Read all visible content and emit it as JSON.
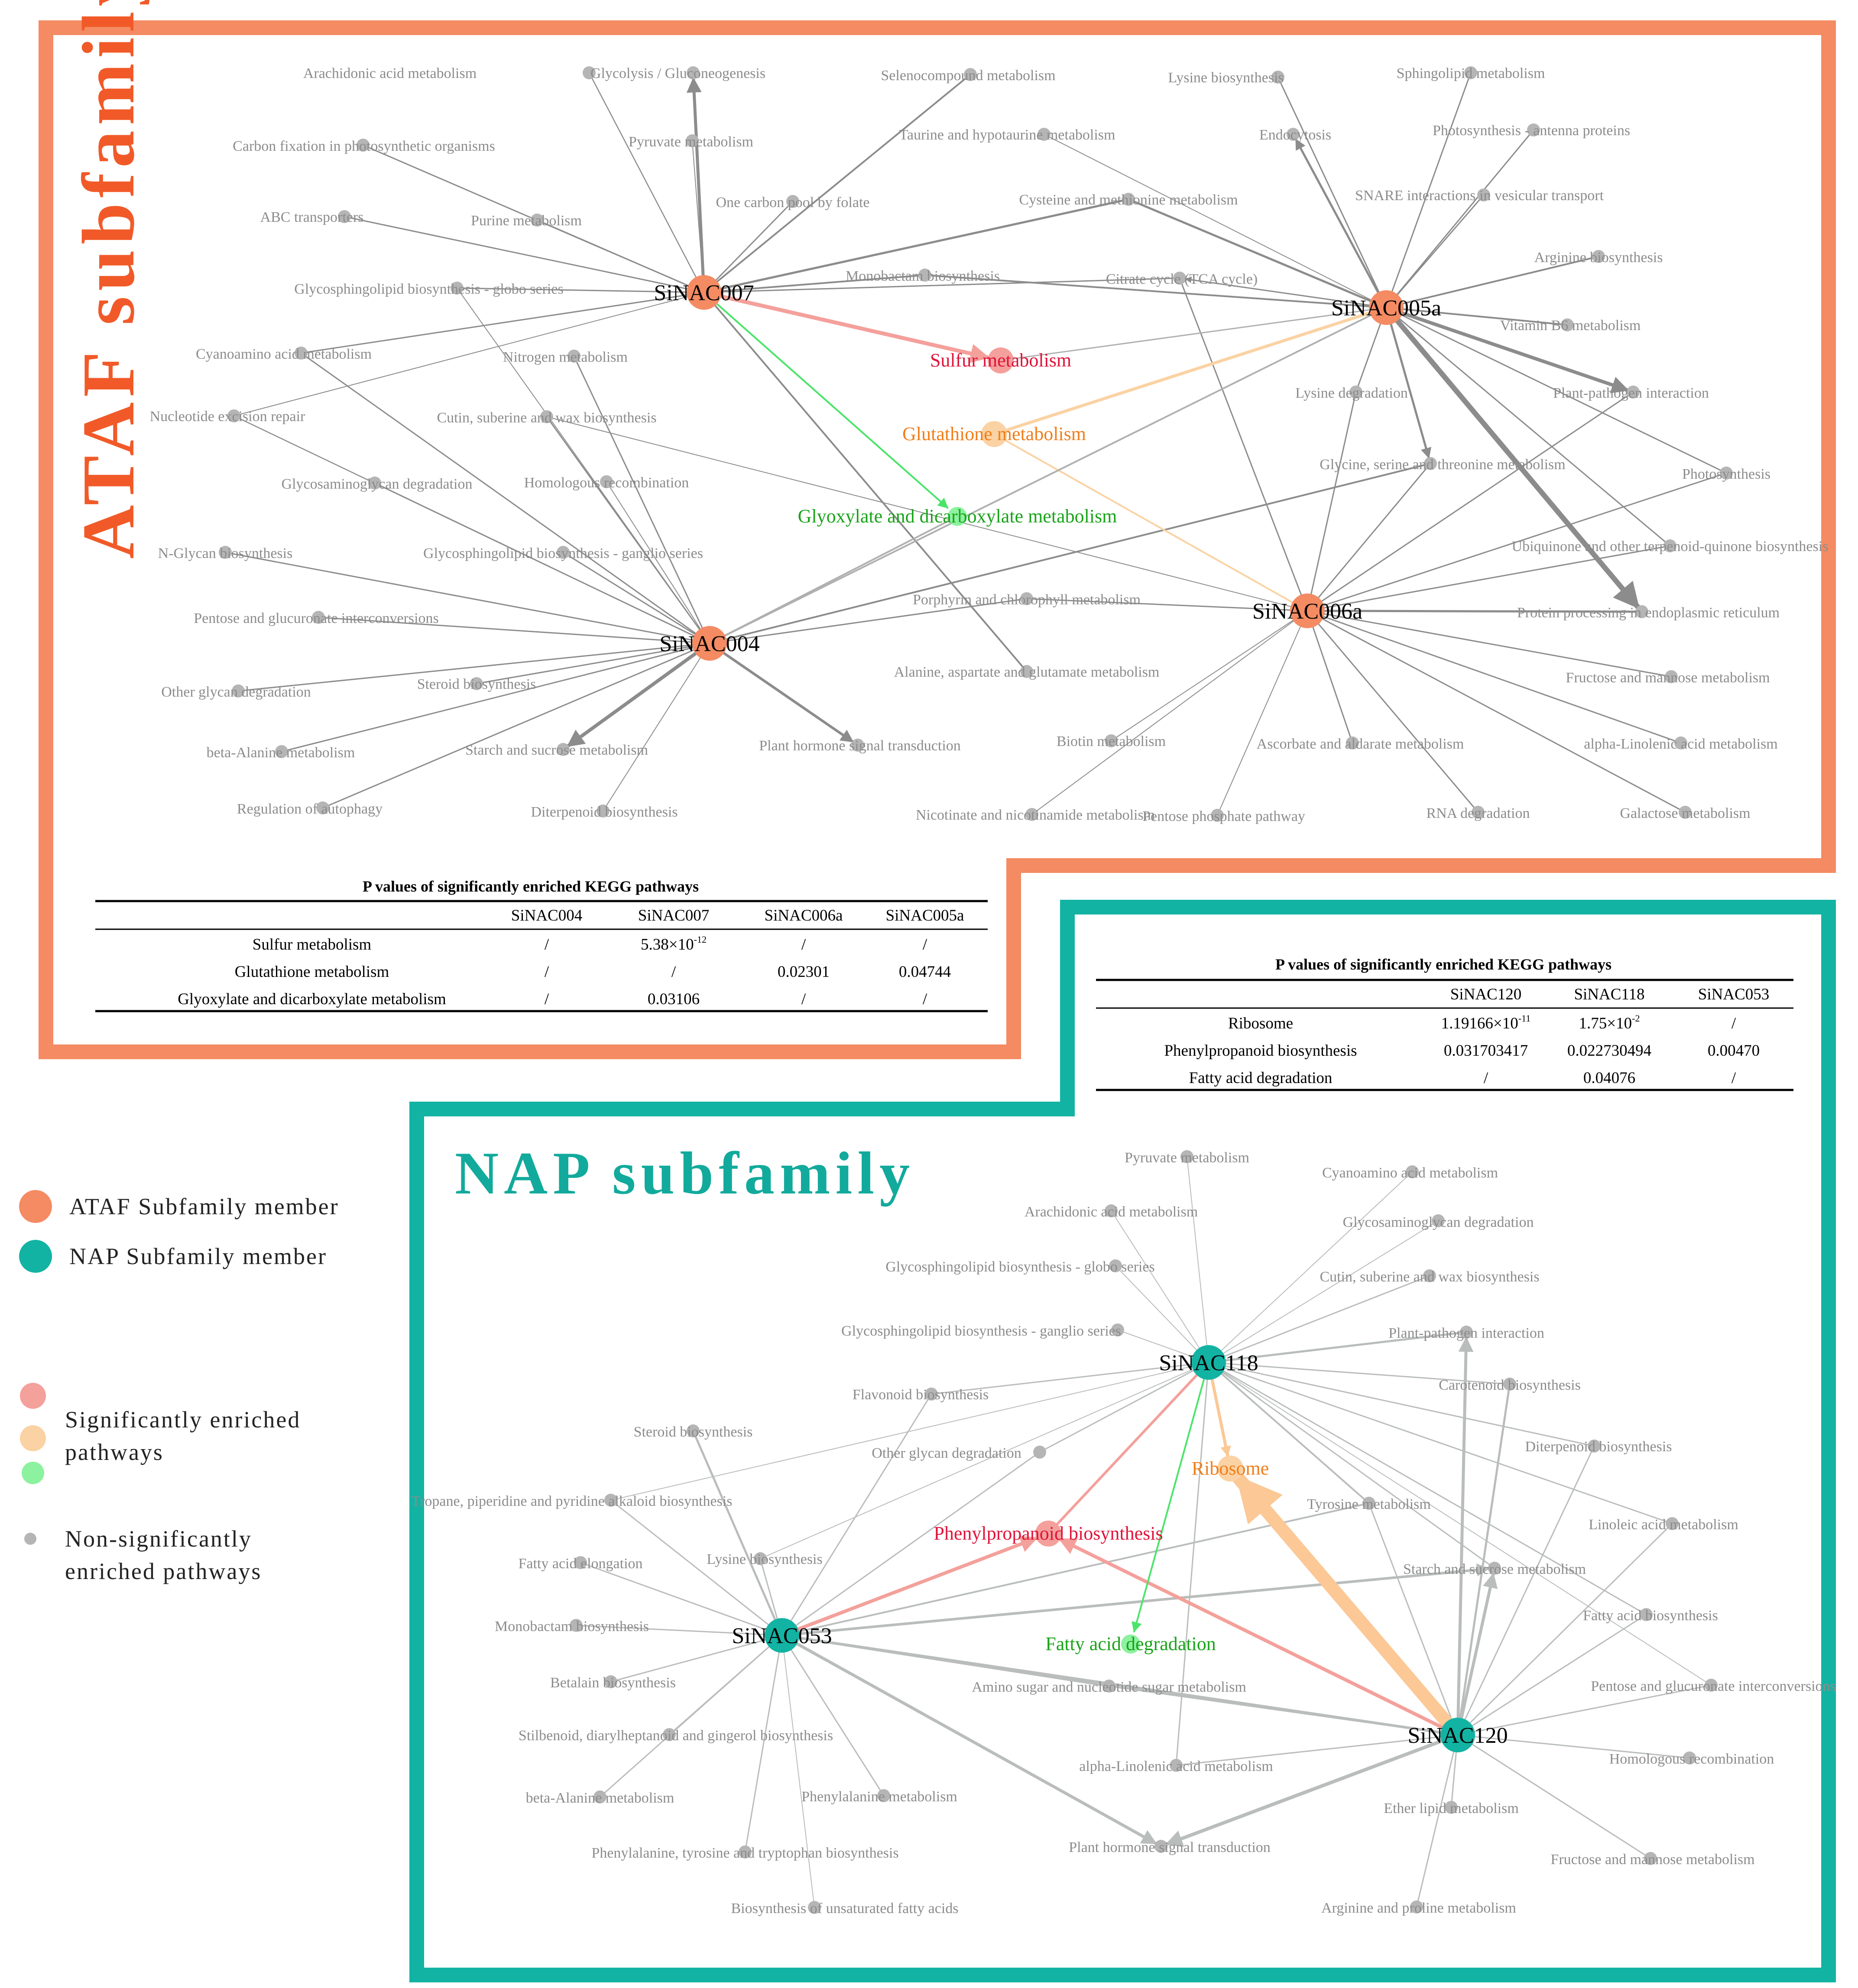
{
  "colors": {
    "ataf": "#f48b62",
    "nap": "#13b3a3",
    "sig_red": "#f4a09b",
    "sig_orange": "#fbd2a3",
    "sig_green": "#8cf29f",
    "nonsig": "#b5b5b5",
    "ataf_title": "#f15a28",
    "nap_title": "#12aa9c"
  },
  "ataf": {
    "title": "ATAF subfamily",
    "hubs": [
      {
        "id": "SiNAC007",
        "label": "SiNAC007"
      },
      {
        "id": "SiNAC005a",
        "label": "SiNAC005a"
      },
      {
        "id": "SiNAC004",
        "label": "SiNAC004"
      },
      {
        "id": "SiNAC006a",
        "label": "SiNAC006a"
      }
    ],
    "significant": [
      {
        "id": "sulfur",
        "label": "Sulfur metabolism",
        "color": "#e0133a"
      },
      {
        "id": "glutathione",
        "label": "Glutathione metabolism",
        "color": "#f07e1b"
      },
      {
        "id": "glyoxylate",
        "label": "Glyoxylate and dicarboxylate metabolism",
        "color": "#1aa31a"
      }
    ],
    "pathways": [
      "Arachidonic acid metabolism",
      "Glycolysis / Gluconeogenesis",
      "Selenocompound metabolism",
      "Lysine biosynthesis",
      "Sphingolipid metabolism",
      "Carbon fixation in photosynthetic organisms",
      "Pyruvate metabolism",
      "Taurine and hypotaurine metabolism",
      "Endocytosis",
      "Photosynthesis - antenna proteins",
      "One carbon pool by folate",
      "ABC transporters",
      "Purine metabolism",
      "Cysteine and methionine metabolism",
      "SNARE interactions in vesicular transport",
      "Arginine biosynthesis",
      "Glycosphingolipid biosynthesis - globo series",
      "Monobactam biosynthesis",
      "Citrate cycle (TCA cycle)",
      "Vitamin B6 metabolism",
      "Cyanoamino acid metabolism",
      "Nitrogen metabolism",
      "Plant-pathogen interaction",
      "Lysine degradation",
      "Nucleotide excision repair",
      "Cutin, suberine and wax biosynthesis",
      "Glycine, serine and threonine metabolism",
      "Photosynthesis",
      "Glycosaminoglycan degradation",
      "Homologous recombination",
      "Ubiquinone and other terpenoid-quinone biosynthesis",
      "N-Glycan biosynthesis",
      "Glycosphingolipid biosynthesis - ganglio series",
      "Porphyrin and chlorophyll metabolism",
      "Protein processing in endoplasmic reticulum",
      "Pentose and glucuronate interconversions",
      "Other glycan degradation",
      "Steroid biosynthesis",
      "Alanine, aspartate and glutamate metabolism",
      "Fructose and mannose metabolism",
      "beta-Alanine metabolism",
      "Starch and sucrose metabolism",
      "Plant hormone signal transduction",
      "Biotin metabolism",
      "Ascorbate and aldarate metabolism",
      "alpha-Linolenic acid metabolism",
      "Regulation of autophagy",
      "Diterpenoid biosynthesis",
      "Nicotinate and nicotinamide metabolism",
      "Pentose phosphate pathway",
      "RNA degradation",
      "Galactose metabolism"
    ],
    "table": {
      "title": "P values of significantly enriched KEGG pathways",
      "columns": [
        "",
        "SiNAC004",
        "SiNAC007",
        "SiNAC006a",
        "SiNAC005a"
      ],
      "rows": [
        {
          "name": "Sulfur metabolism",
          "values": [
            "/",
            "5.38×10",
            "/",
            "/"
          ],
          "exp": [
            "",
            "-12",
            "",
            ""
          ]
        },
        {
          "name": "Glutathione metabolism",
          "values": [
            "/",
            "/",
            "0.02301",
            "0.04744"
          ],
          "exp": [
            "",
            "",
            "",
            ""
          ]
        },
        {
          "name": "Glyoxylate and dicarboxylate metabolism",
          "values": [
            "/",
            "0.03106",
            "/",
            "/"
          ],
          "exp": [
            "",
            "",
            "",
            ""
          ]
        }
      ]
    }
  },
  "nap": {
    "title": "NAP subfamily",
    "hubs": [
      {
        "id": "SiNAC118",
        "label": "SiNAC118"
      },
      {
        "id": "SiNAC053",
        "label": "SiNAC053"
      },
      {
        "id": "SiNAC120",
        "label": "SiNAC120"
      }
    ],
    "significant": [
      {
        "id": "ribosome",
        "label": "Ribosome",
        "color": "#f07e1b"
      },
      {
        "id": "phenylpropanoid",
        "label": "Phenylpropanoid biosynthesis",
        "color": "#e0133a"
      },
      {
        "id": "fattyacid",
        "label": "Fatty acid degradation",
        "color": "#1aa31a"
      }
    ],
    "pathways": [
      "Pyruvate metabolism",
      "Cyanoamino acid metabolism",
      "Arachidonic acid metabolism",
      "Glycosaminoglycan degradation",
      "Glycosphingolipid biosynthesis - globo series",
      "Cutin, suberine and wax biosynthesis",
      "Glycosphingolipid biosynthesis - ganglio series",
      "Plant-pathogen interaction",
      "Carotenoid biosynthesis",
      "Flavonoid biosynthesis",
      "Steroid biosynthesis",
      "Diterpenoid biosynthesis",
      "Other glycan degradation",
      "Tyrosine metabolism",
      "Tropane, piperidine and pyridine alkaloid biosynthesis",
      "Linoleic acid metabolism",
      "Fatty acid elongation",
      "Lysine biosynthesis",
      "Starch and sucrose metabolism",
      "Monobactam biosynthesis",
      "Fatty acid biosynthesis",
      "Betalain biosynthesis",
      "Amino sugar and nucleotide sugar metabolism",
      "Pentose and glucuronate interconversions",
      "Stilbenoid, diarylheptanoid and gingerol biosynthesis",
      "Homologous recombination",
      "alpha-Linolenic acid metabolism",
      "beta-Alanine metabolism",
      "Phenylalanine metabolism",
      "Ether lipid metabolism",
      "Plant hormone signal transduction",
      "Phenylalanine, tyrosine and tryptophan biosynthesis",
      "Fructose and mannose metabolism",
      "Biosynthesis of unsaturated fatty acids",
      "Arginine and proline metabolism"
    ],
    "table": {
      "title": "P values of significantly enriched KEGG pathways",
      "columns": [
        "",
        "SiNAC120",
        "SiNAC118",
        "SiNAC053"
      ],
      "rows": [
        {
          "name": "Ribosome",
          "values": [
            "1.19166×10",
            "1.75×10",
            "/"
          ],
          "exp": [
            "-11",
            "-2",
            ""
          ]
        },
        {
          "name": "Phenylpropanoid biosynthesis",
          "values": [
            "0.031703417",
            "0.022730494",
            "0.00470"
          ],
          "exp": [
            "",
            "",
            ""
          ]
        },
        {
          "name": "Fatty acid degradation",
          "values": [
            "/",
            "0.04076",
            "/"
          ],
          "exp": [
            "",
            "",
            ""
          ]
        }
      ]
    }
  },
  "legend": {
    "ataf_member": "ATAF Subfamily member",
    "nap_member": "NAP Subfamily member",
    "significant_line1": "Significantly enriched",
    "significant_line2": "pathways",
    "nonsig_line1": "Non-significantly",
    "nonsig_line2": "enriched pathways"
  }
}
